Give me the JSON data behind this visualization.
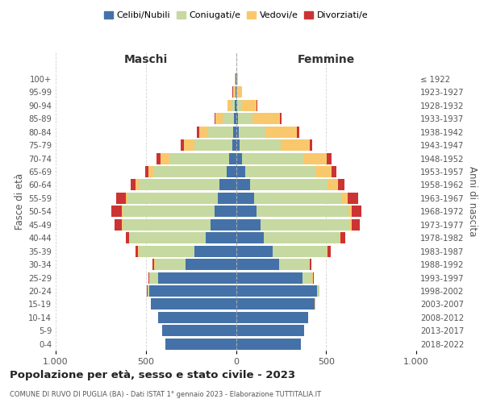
{
  "age_groups": [
    "0-4",
    "5-9",
    "10-14",
    "15-19",
    "20-24",
    "25-29",
    "30-34",
    "35-39",
    "40-44",
    "45-49",
    "50-54",
    "55-59",
    "60-64",
    "65-69",
    "70-74",
    "75-79",
    "80-84",
    "85-89",
    "90-94",
    "95-99",
    "100+"
  ],
  "birth_years": [
    "2018-2022",
    "2013-2017",
    "2008-2012",
    "2003-2007",
    "1998-2002",
    "1993-1997",
    "1988-1992",
    "1983-1987",
    "1978-1982",
    "1973-1977",
    "1968-1972",
    "1963-1967",
    "1958-1962",
    "1953-1957",
    "1948-1952",
    "1943-1947",
    "1938-1942",
    "1933-1937",
    "1928-1932",
    "1923-1927",
    "≤ 1922"
  ],
  "males": {
    "celibi": [
      390,
      410,
      430,
      470,
      480,
      430,
      280,
      230,
      170,
      140,
      120,
      100,
      90,
      50,
      40,
      20,
      15,
      10,
      5,
      3,
      2
    ],
    "coniugati": [
      0,
      0,
      0,
      3,
      10,
      50,
      170,
      310,
      420,
      490,
      510,
      500,
      450,
      410,
      330,
      210,
      140,
      65,
      20,
      5,
      2
    ],
    "vedovi": [
      0,
      0,
      0,
      0,
      1,
      2,
      2,
      2,
      2,
      3,
      5,
      10,
      15,
      25,
      50,
      60,
      50,
      40,
      20,
      8,
      2
    ],
    "divorziati": [
      0,
      0,
      0,
      1,
      2,
      5,
      10,
      15,
      20,
      40,
      55,
      55,
      30,
      20,
      20,
      15,
      10,
      5,
      3,
      2,
      1
    ]
  },
  "females": {
    "nubili": [
      360,
      380,
      400,
      435,
      450,
      370,
      240,
      205,
      155,
      135,
      115,
      100,
      80,
      50,
      35,
      18,
      15,
      10,
      8,
      3,
      2
    ],
    "coniugate": [
      0,
      0,
      0,
      3,
      12,
      55,
      165,
      300,
      420,
      495,
      510,
      490,
      430,
      390,
      340,
      230,
      150,
      80,
      25,
      5,
      2
    ],
    "vedove": [
      0,
      0,
      0,
      1,
      1,
      3,
      3,
      5,
      5,
      10,
      15,
      30,
      55,
      90,
      130,
      160,
      175,
      155,
      80,
      25,
      5
    ],
    "divorziate": [
      0,
      0,
      0,
      1,
      2,
      5,
      10,
      15,
      25,
      45,
      55,
      60,
      35,
      25,
      25,
      15,
      12,
      6,
      4,
      2,
      1
    ]
  },
  "colors": {
    "celibi": "#4472A8",
    "coniugati": "#C6D9A0",
    "vedovi": "#F9C86D",
    "divorziati": "#CC3333"
  },
  "title": "Popolazione per età, sesso e stato civile - 2023",
  "subtitle": "COMUNE DI RUVO DI PUGLIA (BA) - Dati ISTAT 1° gennaio 2023 - Elaborazione TUTTITALIA.IT",
  "ylabel": "Fasce di età",
  "ylabel_right": "Anni di nascita",
  "xlabel_left": "Maschi",
  "xlabel_right": "Femmine",
  "xlim": 1000,
  "xticklabels": [
    "1.000",
    "500",
    "0",
    "500",
    "1.000"
  ],
  "legend_labels": [
    "Celibi/Nubili",
    "Coniugati/e",
    "Vedovi/e",
    "Divorziati/e"
  ],
  "background_color": "#ffffff",
  "grid_color": "#cccccc"
}
